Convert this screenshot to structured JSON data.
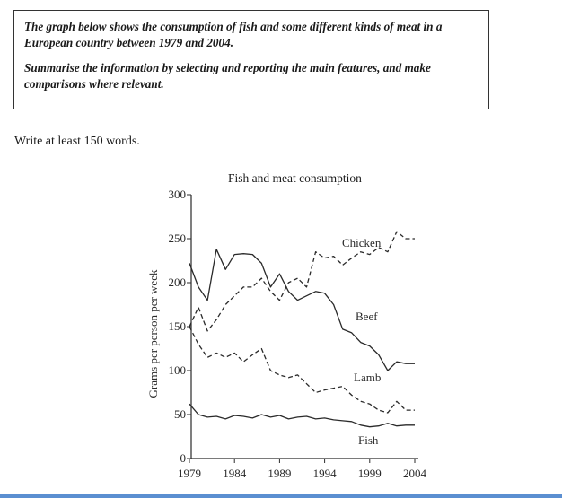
{
  "task": {
    "paragraph1": "The graph below shows the consumption of fish and some different kinds of meat in a European country between 1979 and 2004.",
    "paragraph2": "Summarise the information by selecting and reporting the main features, and make comparisons where relevant."
  },
  "instruction": "Write at least 150 words.",
  "chart_data": {
    "type": "line",
    "title": "Fish and meat consumption",
    "xlabel": "",
    "ylabel": "Grams per person per week",
    "xlim": [
      1979,
      2004
    ],
    "ylim": [
      0,
      300
    ],
    "xticks": [
      "1979",
      "1984",
      "1989",
      "1994",
      "1999",
      "2004"
    ],
    "yticks": [
      "0",
      "50",
      "100",
      "150",
      "200",
      "250",
      "300"
    ],
    "x": [
      1979,
      1980,
      1981,
      1982,
      1983,
      1984,
      1985,
      1986,
      1987,
      1988,
      1989,
      1990,
      1991,
      1992,
      1993,
      1994,
      1995,
      1996,
      1997,
      1998,
      1999,
      2000,
      2001,
      2002,
      2003,
      2004
    ],
    "series": [
      {
        "name": "Beef",
        "style": "solid",
        "values": [
          222,
          195,
          180,
          238,
          215,
          232,
          233,
          232,
          222,
          195,
          210,
          190,
          180,
          185,
          190,
          188,
          175,
          147,
          143,
          132,
          128,
          118,
          100,
          110,
          108,
          108
        ]
      },
      {
        "name": "Chicken",
        "style": "dashed",
        "values": [
          150,
          172,
          145,
          158,
          175,
          185,
          195,
          195,
          205,
          190,
          180,
          200,
          205,
          195,
          235,
          228,
          230,
          220,
          228,
          235,
          232,
          240,
          235,
          258,
          250,
          250
        ]
      },
      {
        "name": "Lamb",
        "style": "dashed",
        "values": [
          150,
          130,
          115,
          120,
          115,
          120,
          110,
          118,
          125,
          100,
          95,
          92,
          95,
          85,
          75,
          78,
          80,
          82,
          72,
          65,
          62,
          55,
          52,
          65,
          55,
          55
        ]
      },
      {
        "name": "Fish",
        "style": "solid",
        "values": [
          62,
          50,
          47,
          48,
          45,
          49,
          48,
          46,
          50,
          47,
          49,
          45,
          47,
          48,
          45,
          46,
          44,
          43,
          42,
          38,
          36,
          37,
          40,
          37,
          38,
          38
        ]
      }
    ],
    "grid": false,
    "legend": "inline labels"
  }
}
